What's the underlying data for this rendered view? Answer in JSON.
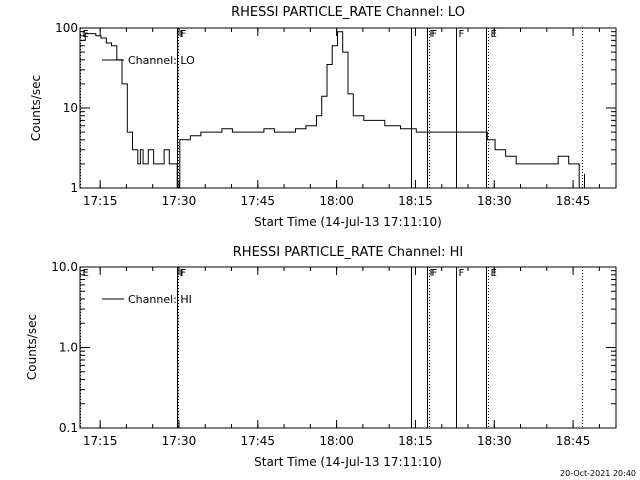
{
  "chart_data": [
    {
      "type": "line",
      "title": "RHESSI PARTICLE_RATE Channel: LO",
      "xlabel": "Start Time (14-Jul-13 17:11:10)",
      "ylabel": "Counts/sec",
      "yscale": "log",
      "ylim": [
        1,
        100
      ],
      "xlim": [
        "17:11:10",
        "18:53:10"
      ],
      "x_ticks": [
        "17:15",
        "17:30",
        "17:45",
        "18:00",
        "18:15",
        "18:30",
        "18:45"
      ],
      "y_ticks": [
        "1",
        "10",
        "100"
      ],
      "legend": {
        "label": "Channel: LO",
        "position": "top-left"
      },
      "event_markers": [
        {
          "label": "E",
          "time": "17:11:10",
          "style": "dotted"
        },
        {
          "label": "F",
          "time": "17:29:40",
          "style": "solid"
        },
        {
          "label": "F",
          "time": "17:29:50",
          "style": "dotted"
        },
        {
          "label": "",
          "time": "18:14:10",
          "style": "solid"
        },
        {
          "label": "F",
          "time": "18:17:10",
          "style": "solid"
        },
        {
          "label": "F",
          "time": "18:17:30",
          "style": "dotted"
        },
        {
          "label": "F",
          "time": "18:22:40",
          "style": "solid"
        },
        {
          "label": "",
          "time": "18:28:30",
          "style": "solid"
        },
        {
          "label": "E",
          "time": "18:28:50",
          "style": "dotted"
        },
        {
          "label": "",
          "time": "18:46:40",
          "style": "dotted"
        }
      ],
      "series": [
        {
          "name": "Channel: LO",
          "x": [
            "17:11:10",
            "17:12:10",
            "17:13:10",
            "17:14:10",
            "17:15:10",
            "17:16:10",
            "17:17:10",
            "17:18:10",
            "17:19:10",
            "17:20:10",
            "17:21:10",
            "17:22:10",
            "17:22:40",
            "17:23:10",
            "17:24:10",
            "17:25:10",
            "17:26:10",
            "17:27:10",
            "17:28:10",
            "17:29:10",
            "17:29:40",
            "17:30:10",
            "17:32:10",
            "17:34:10",
            "17:36:10",
            "17:38:10",
            "17:40:10",
            "17:42:10",
            "17:44:10",
            "17:46:10",
            "17:48:10",
            "17:50:10",
            "17:52:10",
            "17:54:10",
            "17:56:10",
            "17:57:10",
            "17:58:10",
            "17:59:10",
            "18:00:10",
            "18:01:10",
            "18:02:10",
            "18:03:10",
            "18:05:10",
            "18:07:10",
            "18:09:10",
            "18:12:10",
            "18:15:10",
            "18:18:10",
            "18:21:10",
            "18:24:10",
            "18:27:10",
            "18:28:40",
            "18:30:10",
            "18:32:10",
            "18:34:10",
            "18:36:10",
            "18:38:10",
            "18:40:10",
            "18:42:10",
            "18:44:10",
            "18:45:10",
            "18:46:10",
            "18:47:10"
          ],
          "values": [
            70,
            85,
            85,
            80,
            75,
            65,
            60,
            40,
            20,
            5,
            3,
            2,
            3,
            2,
            3,
            2,
            2,
            3,
            2,
            2,
            1,
            4,
            4.5,
            5,
            5,
            5.5,
            5,
            5,
            5,
            5.5,
            5,
            5,
            5.5,
            6,
            8,
            14,
            35,
            60,
            90,
            50,
            15,
            8,
            7,
            7,
            6,
            5.5,
            5,
            5,
            5,
            5,
            5,
            4,
            3,
            2.5,
            2,
            2,
            2,
            2,
            2.5,
            2,
            2,
            1,
            1.5
          ]
        }
      ]
    },
    {
      "type": "line",
      "title": "RHESSI PARTICLE_RATE Channel: HI",
      "xlabel": "Start Time (14-Jul-13 17:11:10)",
      "ylabel": "Counts/sec",
      "yscale": "log",
      "ylim": [
        0.1,
        10
      ],
      "xlim": [
        "17:11:10",
        "18:53:10"
      ],
      "x_ticks": [
        "17:15",
        "17:30",
        "17:45",
        "18:00",
        "18:15",
        "18:30",
        "18:45"
      ],
      "y_ticks": [
        "0.1",
        "1.0",
        "10.0"
      ],
      "legend": {
        "label": "Channel: HI",
        "position": "top-left"
      },
      "event_markers": [
        {
          "label": "E",
          "time": "17:11:10",
          "style": "dotted"
        },
        {
          "label": "F",
          "time": "17:29:40",
          "style": "solid"
        },
        {
          "label": "F",
          "time": "17:29:50",
          "style": "dotted"
        },
        {
          "label": "",
          "time": "18:14:10",
          "style": "solid"
        },
        {
          "label": "F",
          "time": "18:17:10",
          "style": "solid"
        },
        {
          "label": "F",
          "time": "18:17:30",
          "style": "dotted"
        },
        {
          "label": "F",
          "time": "18:22:40",
          "style": "solid"
        },
        {
          "label": "",
          "time": "18:28:30",
          "style": "solid"
        },
        {
          "label": "E",
          "time": "18:28:50",
          "style": "dotted"
        },
        {
          "label": "",
          "time": "18:46:40",
          "style": "dotted"
        }
      ],
      "series": [
        {
          "name": "Channel: HI",
          "x": [],
          "values": []
        }
      ]
    }
  ],
  "footer": {
    "timestamp": "20-Oct-2021 20:40"
  }
}
